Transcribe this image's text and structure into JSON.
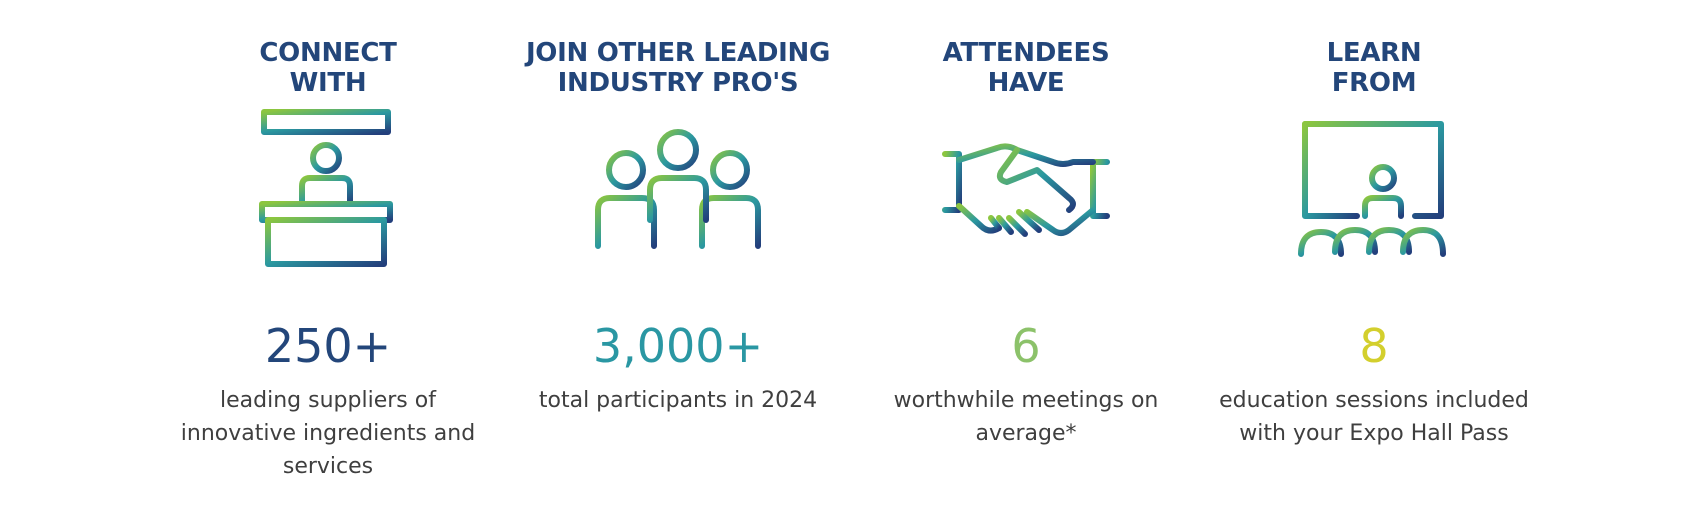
{
  "stats": [
    {
      "heading": "CONNECT\nWITH",
      "icon": "exhibitor-booth-icon",
      "number": "250+",
      "number_color": "#23467a",
      "description": "leading suppliers of innovative ingredients and services"
    },
    {
      "heading": "JOIN OTHER LEADING\nINDUSTRY PRO'S",
      "icon": "people-group-icon",
      "number": "3,000+",
      "number_color": "#2a97a3",
      "description": "total participants in 2024"
    },
    {
      "heading": "ATTENDEES\nHAVE",
      "icon": "handshake-icon",
      "number": "6",
      "number_color": "#8cc26a",
      "description": "worthwhile meetings on average*"
    },
    {
      "heading": "LEARN\nFROM",
      "icon": "presentation-audience-icon",
      "number": "8",
      "number_color": "#d3cf2d",
      "description": "education sessions included with your Expo Hall Pass"
    }
  ],
  "gradient": {
    "start": "#8cc63f",
    "mid": "#2b99a0",
    "end": "#233f7c"
  }
}
